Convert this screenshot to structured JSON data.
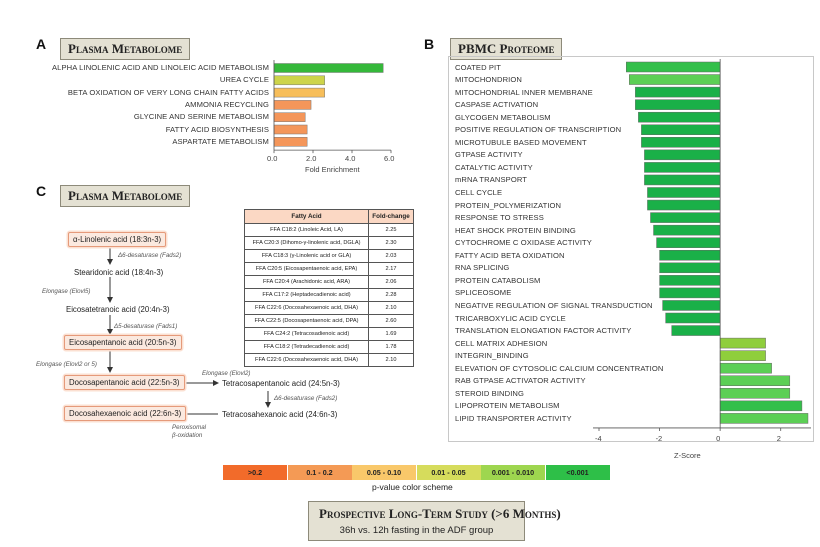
{
  "panel_a": {
    "letter": "A",
    "title": "Plasma Metabolome",
    "chart_data": {
      "type": "bar",
      "orientation": "horizontal",
      "categories": [
        "ALPHA LINOLENIC ACID AND LINOLEIC ACID METABOLISM",
        "UREA CYCLE",
        "BETA OXIDATION OF VERY LONG CHAIN FATTY ACIDS",
        "AMMONIA RECYCLING",
        "GLYCINE AND SERINE METABOLISM",
        "FATTY ACID BIOSYNTHESIS",
        "ASPARTATE METABOLISM"
      ],
      "values": [
        5.6,
        2.6,
        2.6,
        1.9,
        1.6,
        1.7,
        1.7
      ],
      "colors": [
        "#35b83a",
        "#cdd44a",
        "#f7be5a",
        "#f4965a",
        "#f4965a",
        "#f4965a",
        "#f4965a"
      ],
      "xlabel": "Fold Enrichment",
      "xlim": [
        0,
        6
      ],
      "xticks": [
        "0.0",
        "2.0",
        "4.0",
        "6.0"
      ]
    }
  },
  "panel_b": {
    "letter": "B",
    "title": "PBMC Proteome",
    "chart_data": {
      "type": "bar",
      "orientation": "horizontal",
      "categories": [
        "COATED PIT",
        "MITOCHONDRION",
        "MITOCHONDRIAL INNER MEMBRANE",
        "CASPASE ACTIVATION",
        "GLYCOGEN METABOLISM",
        "POSITIVE REGULATION OF TRANSCRIPTION",
        "MICROTUBULE BASED MOVEMENT",
        "GTPASE ACTIVITY",
        "CATALYTIC ACTIVITY",
        "mRNA TRANSPORT",
        "CELL CYCLE",
        "PROTEIN_POLYMERIZATION",
        "RESPONSE TO STRESS",
        "HEAT SHOCK PROTEIN BINDING",
        "CYTOCHROME C OXIDASE ACTIVITY",
        "FATTY ACID BETA OXIDATION",
        "RNA SPLICING",
        "PROTEIN CATABOLISM",
        "SPLICEOSOME",
        "NEGATIVE REGULATION OF SIGNAL TRANSDUCTION",
        "TRICARBOXYLIC ACID CYCLE",
        "TRANSLATION ELONGATION FACTOR ACTIVITY",
        "CELL MATRIX ADHESION",
        "INTEGRIN_BINDING",
        "ELEVATION OF CYTOSOLIC CALCIUM CONCENTRATION",
        "RAB GTPASE ACTIVATOR ACTIVITY",
        "STEROID BINDING",
        "LIPOPROTEIN METABOLISM",
        "LIPID TRANSPORTER ACTIVITY"
      ],
      "values": [
        -3.1,
        -3.0,
        -2.8,
        -2.8,
        -2.7,
        -2.6,
        -2.6,
        -2.5,
        -2.5,
        -2.5,
        -2.4,
        -2.4,
        -2.3,
        -2.2,
        -2.1,
        -2.0,
        -2.0,
        -2.0,
        -2.0,
        -1.9,
        -1.8,
        -1.6,
        1.5,
        1.5,
        1.7,
        2.3,
        2.3,
        2.7,
        2.9
      ],
      "colors": [
        "#33bf4a",
        "#5ccf55",
        "#1ab048",
        "#1ab048",
        "#1ab048",
        "#1ab048",
        "#1ab048",
        "#1ab048",
        "#1ab048",
        "#1ab048",
        "#1ab048",
        "#1ab048",
        "#1ab048",
        "#1ab048",
        "#1ab048",
        "#1ab048",
        "#1ab048",
        "#1ab048",
        "#1ab048",
        "#1ab048",
        "#1ab048",
        "#1ab048",
        "#8fce3c",
        "#8fce3c",
        "#5ccf55",
        "#5ccf55",
        "#5ccf55",
        "#33bf4a",
        "#5ccf55"
      ],
      "xlabel": "Z-Score",
      "xlim": [
        -4,
        3
      ],
      "xticks": [
        "-4",
        "-2",
        "0",
        "2"
      ]
    }
  },
  "panel_c": {
    "letter": "C",
    "title": "Plasma Metabolome",
    "pathway": {
      "nodes": {
        "ala": "α-Linolenic acid (18:3n-3)",
        "sda": "Stearidonic acid (18:4n-3)",
        "eta": "Eicosatetranoic acid (20:4n-3)",
        "epa": "Eicosapentanoic acid (20:5n-3)",
        "dpa": "Docosapentanoic acid (22:5n-3)",
        "tpa": "Tetracosapentanoic acid (24:5n-3)",
        "dha": "Docosahexaenoic acid (22:6n-3)",
        "tha": "Tetracosahexanoic acid (24:6n-3)"
      },
      "enzymes": {
        "e1": "Δ6-desaturase (Fads2)",
        "e2": "Elongase (Elovl5)",
        "e3": "Δ5-desaturase (Fads1)",
        "e4": "Elongase (Elovl2 or 5)",
        "e5": "Elongase (Elovl2)",
        "e6": "Δ6-desaturase (Fads2)",
        "e7a": "Peroxisomal",
        "e7b": "β-oxidation"
      }
    },
    "table": {
      "headers": [
        "Fatty Acid",
        "Fold-change"
      ],
      "rows": [
        [
          "FFA C18:2 (Linoleic Acid, LA)",
          "2.25"
        ],
        [
          "FFA C20:3 (Dihomo-γ-linolenic acid, DGLA)",
          "2.30"
        ],
        [
          "FFA C18:3 (γ-Linolenic acid or GLA)",
          "2.03"
        ],
        [
          "FFA C20:5 (Eicosapentaenoic acid, EPA)",
          "2.17"
        ],
        [
          "FFA C20:4 (Arachidonic acid, ARA)",
          "2.06"
        ],
        [
          "FFA C17:2 (Heptadecadienoic acid)",
          "2.28"
        ],
        [
          "FFA C22:6 (Docosahexaenoic acid, DHA)",
          "2.10"
        ],
        [
          "FFA C22:5 (Docosapentaenoic acid, DPA)",
          "2.60"
        ],
        [
          "FFA C24:2 (Tetracosadienoic acid)",
          "1.69"
        ],
        [
          "FFA C18:2 (Tetradecadienoic acid)",
          "1.78"
        ],
        [
          "FFA C22:6 (Docosahexaenoic acid, DHA)",
          "2.10"
        ]
      ]
    }
  },
  "legend": {
    "caption": "p-value color scheme",
    "items": [
      {
        "label": ">0.2",
        "color": "#f26b2a"
      },
      {
        "label": "0.1 - 0.2",
        "color": "#f49a55"
      },
      {
        "label": "0.05 - 0.10",
        "color": "#f9c86a"
      },
      {
        "label": "0.01 - 0.05",
        "color": "#d6dc5c"
      },
      {
        "label": "0.001 - 0.010",
        "color": "#9ed64f"
      },
      {
        "label": "<0.001",
        "color": "#2ebf48"
      }
    ]
  },
  "study": {
    "title": "Prospective Long-Term Study (>6 Months)",
    "subtitle": "36h vs. 12h fasting in the ADF group"
  }
}
